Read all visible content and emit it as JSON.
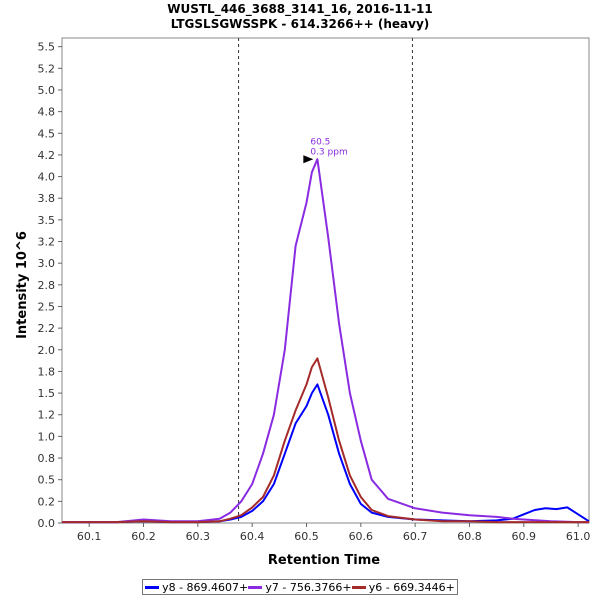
{
  "header": {
    "title": "WUSTL_446_3688_3141_16, 2016-11-11",
    "subtitle": "LTGSLSGWSSPK - 614.3266++ (heavy)"
  },
  "legend": [
    {
      "label": "y8 - 869.4607+",
      "color": "#0000ff"
    },
    {
      "label": "y7 - 756.3766+",
      "color": "#8a2be2"
    },
    {
      "label": "y6 - 669.3446+",
      "color": "#a52a2a"
    }
  ],
  "chart_data": {
    "type": "line",
    "title": "WUSTL_446_3688_3141_16, 2016-11-11",
    "subtitle": "LTGSLSGWSSPK - 614.3266++ (heavy)",
    "xlabel": "Retention Time",
    "ylabel": "Intensity 10^6",
    "xlim": [
      60.05,
      61.02
    ],
    "ylim": [
      0,
      5.6
    ],
    "x_ticks": [
      "60.1",
      "60.2",
      "60.3",
      "60.4",
      "60.5",
      "60.6",
      "60.7",
      "60.8",
      "60.9",
      "61.0"
    ],
    "y_ticks": [
      "0.0",
      "0.2",
      "0.5",
      "0.8",
      "1.0",
      "1.2",
      "1.5",
      "1.8",
      "2.0",
      "2.2",
      "2.5",
      "2.8",
      "3.0",
      "3.2",
      "3.5",
      "3.8",
      "4.0",
      "4.2",
      "4.5",
      "4.8",
      "5.0",
      "5.2",
      "5.5"
    ],
    "grid": false,
    "legend_position": "bottom",
    "vertical_markers": [
      60.375,
      60.695
    ],
    "annotation": {
      "x": 60.52,
      "y": 4.2,
      "lines": [
        "60.5",
        "0.3 ppm"
      ],
      "color": "#8a2be2"
    },
    "series": [
      {
        "name": "y8 - 869.4607+",
        "color": "#0000ff",
        "x": [
          60.05,
          60.15,
          60.2,
          60.25,
          60.3,
          60.34,
          60.36,
          60.38,
          60.4,
          60.42,
          60.44,
          60.46,
          60.48,
          60.5,
          60.51,
          60.52,
          60.54,
          60.56,
          60.58,
          60.6,
          60.62,
          60.65,
          60.7,
          60.75,
          60.8,
          60.85,
          60.88,
          60.9,
          60.92,
          60.94,
          60.96,
          60.98,
          61.0,
          61.02
        ],
        "y": [
          0.01,
          0.01,
          0.02,
          0.01,
          0.01,
          0.02,
          0.04,
          0.07,
          0.14,
          0.25,
          0.45,
          0.8,
          1.15,
          1.35,
          1.5,
          1.6,
          1.25,
          0.8,
          0.45,
          0.22,
          0.12,
          0.07,
          0.04,
          0.03,
          0.02,
          0.03,
          0.05,
          0.1,
          0.15,
          0.17,
          0.16,
          0.18,
          0.1,
          0.02
        ]
      },
      {
        "name": "y7 - 756.3766+",
        "color": "#8a2be2",
        "x": [
          60.05,
          60.15,
          60.2,
          60.25,
          60.3,
          60.34,
          60.36,
          60.38,
          60.4,
          60.42,
          60.44,
          60.46,
          60.48,
          60.5,
          60.51,
          60.52,
          60.54,
          60.56,
          60.58,
          60.6,
          60.62,
          60.65,
          60.7,
          60.75,
          60.8,
          60.85,
          60.88,
          60.9,
          60.95,
          61.0,
          61.02
        ],
        "y": [
          0.01,
          0.01,
          0.04,
          0.02,
          0.02,
          0.05,
          0.12,
          0.25,
          0.45,
          0.8,
          1.25,
          2.0,
          3.2,
          3.7,
          4.05,
          4.2,
          3.3,
          2.3,
          1.5,
          0.95,
          0.5,
          0.28,
          0.17,
          0.12,
          0.09,
          0.07,
          0.05,
          0.04,
          0.02,
          0.01,
          0.01
        ]
      },
      {
        "name": "y6 - 669.3446+",
        "color": "#a52a2a",
        "x": [
          60.05,
          60.15,
          60.2,
          60.25,
          60.3,
          60.34,
          60.36,
          60.38,
          60.4,
          60.42,
          60.44,
          60.46,
          60.48,
          60.5,
          60.51,
          60.52,
          60.54,
          60.56,
          60.58,
          60.6,
          60.62,
          60.65,
          60.7,
          60.75,
          60.8,
          60.85,
          60.9,
          61.0,
          61.02
        ],
        "y": [
          0.01,
          0.01,
          0.02,
          0.01,
          0.01,
          0.02,
          0.05,
          0.09,
          0.18,
          0.3,
          0.55,
          0.95,
          1.3,
          1.6,
          1.8,
          1.9,
          1.45,
          0.95,
          0.55,
          0.3,
          0.15,
          0.08,
          0.04,
          0.02,
          0.02,
          0.01,
          0.01,
          0.01,
          0.01
        ]
      }
    ]
  }
}
